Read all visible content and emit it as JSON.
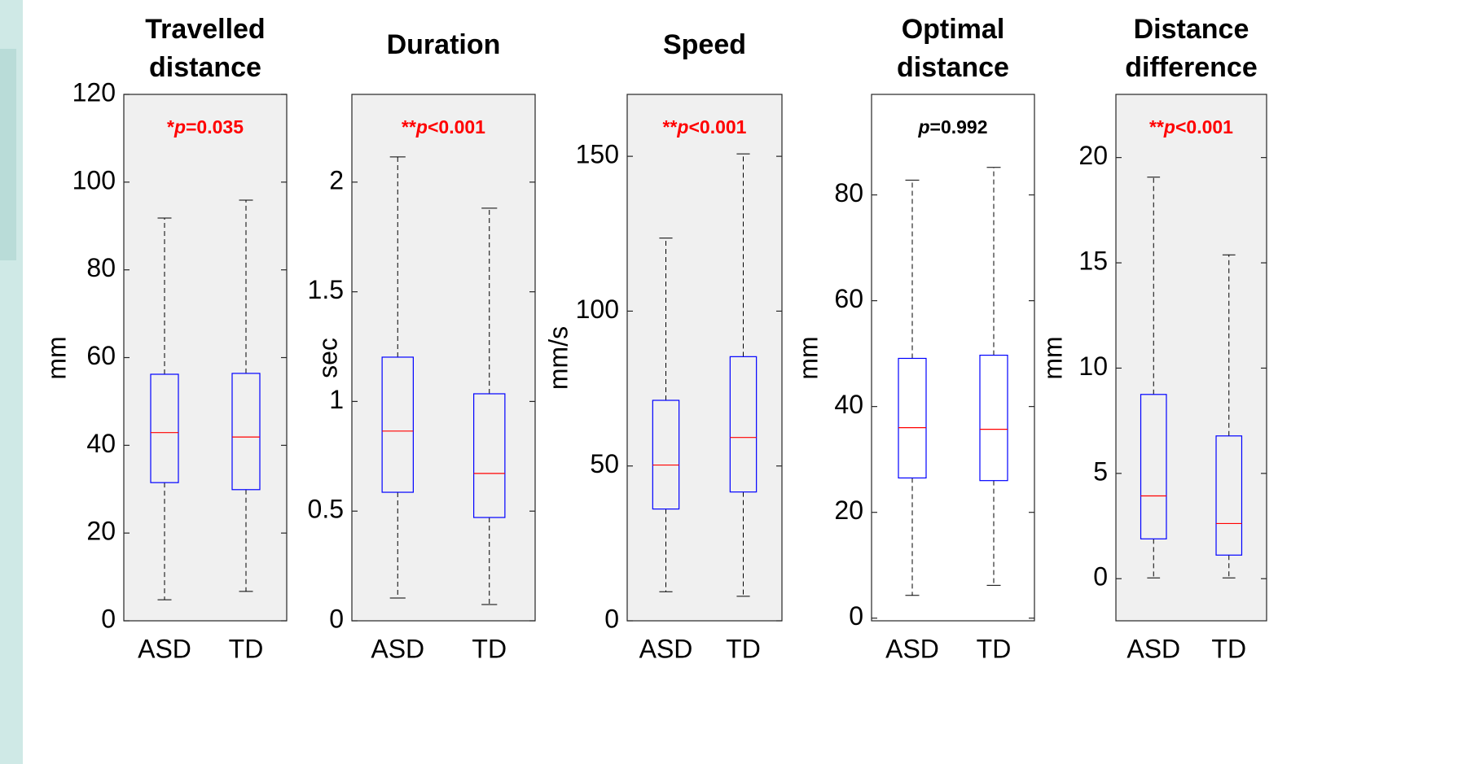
{
  "chart_data": [
    {
      "type": "box",
      "title": [
        "Travelled",
        "distance"
      ],
      "ylabel": "mm",
      "categories": [
        "ASD",
        "TD"
      ],
      "boxes": [
        {
          "whisker_low": 4.8,
          "q1": 31.5,
          "median": 42.9,
          "q3": 56.2,
          "whisker_high": 91.8
        },
        {
          "whisker_low": 6.7,
          "q1": 29.9,
          "median": 41.9,
          "q3": 56.4,
          "whisker_high": 95.9
        }
      ],
      "ylim": [
        0,
        120
      ],
      "yticks": [
        0,
        20,
        40,
        60,
        80,
        100,
        120
      ],
      "annotation": [
        "*",
        "p",
        "=0.035"
      ],
      "annotation_color": "#ff0000",
      "background": "#f0f0f0",
      "box_color": "#0000ff",
      "median_color": "#ff0000"
    },
    {
      "type": "box",
      "title": [
        "Duration"
      ],
      "ylabel": "sec",
      "categories": [
        "ASD",
        "TD"
      ],
      "boxes": [
        {
          "whisker_low": 0.104,
          "q1": 0.586,
          "median": 0.865,
          "q3": 1.202,
          "whisker_high": 2.115
        },
        {
          "whisker_low": 0.074,
          "q1": 0.471,
          "median": 0.672,
          "q3": 1.035,
          "whisker_high": 1.881
        }
      ],
      "ylim": [
        0,
        2.4
      ],
      "yticks": [
        0,
        0.5,
        1,
        1.5,
        2
      ],
      "annotation": [
        "**",
        "p",
        "<0.001"
      ],
      "annotation_color": "#ff0000",
      "background": "#f0f0f0",
      "box_color": "#0000ff",
      "median_color": "#ff0000"
    },
    {
      "type": "box",
      "title": [
        "Speed"
      ],
      "ylabel": "mm/s",
      "categories": [
        "ASD",
        "TD"
      ],
      "boxes": [
        {
          "whisker_low": 9.4,
          "q1": 36.1,
          "median": 50.3,
          "q3": 71.2,
          "whisker_high": 123.6
        },
        {
          "whisker_low": 7.9,
          "q1": 41.6,
          "median": 59.2,
          "q3": 85.3,
          "whisker_high": 150.8
        }
      ],
      "ylim": [
        0,
        170
      ],
      "yticks": [
        0,
        50,
        100,
        150
      ],
      "annotation": [
        "**",
        "p",
        "<0.001"
      ],
      "annotation_color": "#ff0000",
      "background": "#f0f0f0",
      "box_color": "#0000ff",
      "median_color": "#ff0000"
    },
    {
      "type": "box",
      "title": [
        "Optimal",
        "distance"
      ],
      "ylabel": "mm",
      "categories": [
        "ASD",
        "TD"
      ],
      "boxes": [
        {
          "whisker_low": 4.3,
          "q1": 26.5,
          "median": 36.0,
          "q3": 49.1,
          "whisker_high": 82.8
        },
        {
          "whisker_low": 6.2,
          "q1": 26.0,
          "median": 35.7,
          "q3": 49.7,
          "whisker_high": 85.2
        }
      ],
      "ylim": [
        -0.5,
        99
      ],
      "yticks": [
        0,
        20,
        40,
        60,
        80
      ],
      "annotation": [
        "",
        "p",
        "=0.992"
      ],
      "annotation_color": "#000000",
      "background": "#ffffff",
      "box_color": "#0000ff",
      "median_color": "#ff0000"
    },
    {
      "type": "box",
      "title": [
        "Distance",
        "difference"
      ],
      "ylabel": "mm",
      "categories": [
        "ASD",
        "TD"
      ],
      "boxes": [
        {
          "whisker_low": 0.04,
          "q1": 1.89,
          "median": 3.93,
          "q3": 8.75,
          "whisker_high": 19.07
        },
        {
          "whisker_low": 0.04,
          "q1": 1.12,
          "median": 2.62,
          "q3": 6.78,
          "whisker_high": 15.38
        }
      ],
      "ylim": [
        -2,
        23
      ],
      "yticks": [
        0,
        5,
        10,
        15,
        20
      ],
      "annotation": [
        "**",
        "p",
        "<0.001"
      ],
      "annotation_color": "#ff0000",
      "background": "#f0f0f0",
      "box_color": "#0000ff",
      "median_color": "#ff0000"
    }
  ]
}
